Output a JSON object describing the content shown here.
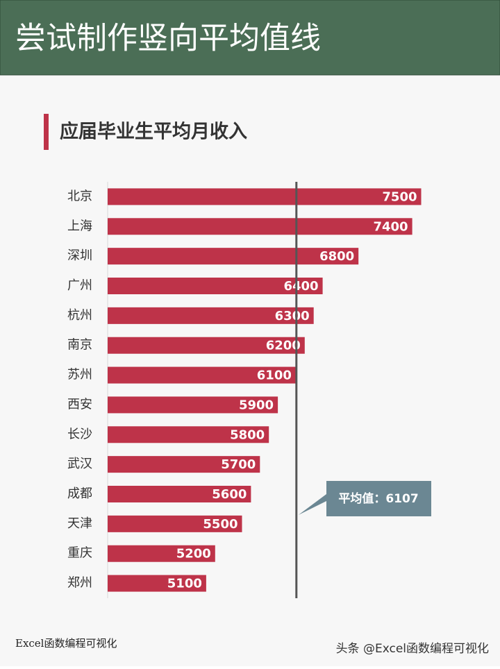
{
  "header": {
    "title": "尝试制作竖向平均值线"
  },
  "chart_data": {
    "type": "hbar",
    "title": "应届毕业生平均月收入",
    "categories": [
      "北京",
      "上海",
      "深圳",
      "广州",
      "杭州",
      "南京",
      "苏州",
      "西安",
      "长沙",
      "武汉",
      "成都",
      "天津",
      "重庆",
      "郑州"
    ],
    "values": [
      7500,
      7400,
      6800,
      6400,
      6300,
      6200,
      6100,
      5900,
      5800,
      5700,
      5600,
      5500,
      5200,
      5100
    ],
    "color": "#be3349",
    "xlim": [
      4000,
      8000
    ],
    "average": {
      "value": 6107,
      "label": "平均值：6107"
    }
  },
  "footer": {
    "left": "Excel函数编程可视化",
    "watermark": "头条 @Excel函数编程可视化"
  }
}
